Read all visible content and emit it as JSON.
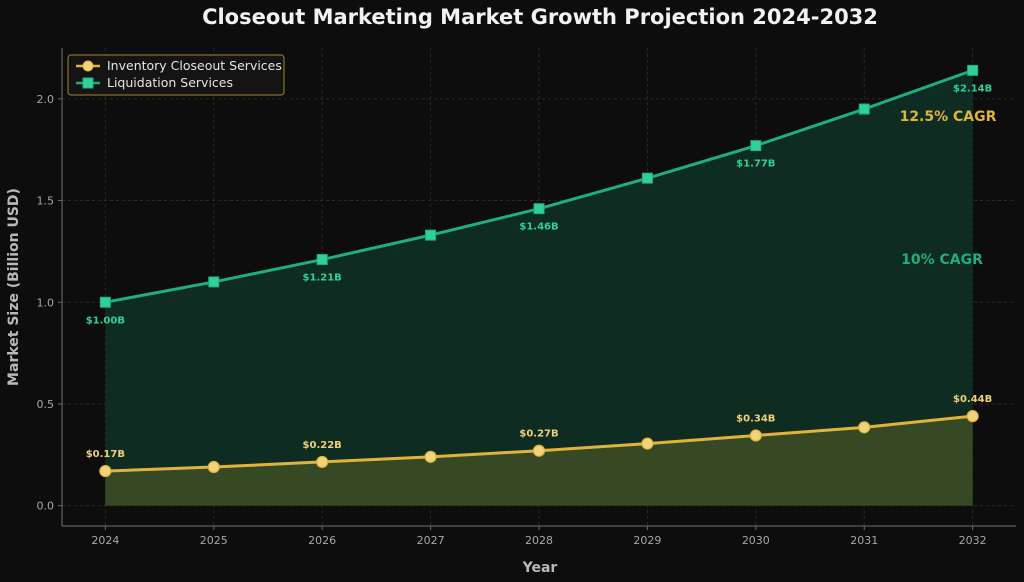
{
  "chart_data": {
    "type": "line",
    "title": "Closeout Marketing Market Growth Projection 2024-2032",
    "xlabel": "Year",
    "ylabel": "Market Size (Billion USD)",
    "x": [
      2024,
      2025,
      2026,
      2027,
      2028,
      2029,
      2030,
      2031,
      2032
    ],
    "xlim": [
      2023.6,
      2032.4
    ],
    "ylim": [
      -0.1,
      2.25
    ],
    "yticks": [
      0.0,
      0.5,
      1.0,
      1.5,
      2.0
    ],
    "grid": true,
    "legend_position": "top-left",
    "series": [
      {
        "name": "Inventory Closeout Services",
        "values": [
          0.17,
          0.19,
          0.215,
          0.24,
          0.27,
          0.305,
          0.345,
          0.385,
          0.44
        ],
        "color": "#e0b43c",
        "marker_fill": "#f2d27a",
        "fill_color": "#3a4a26",
        "marker": "circle",
        "data_labels": [
          {
            "x": 2024,
            "text": "$0.17B"
          },
          {
            "x": 2026,
            "text": "$0.22B"
          },
          {
            "x": 2028,
            "text": "$0.27B"
          },
          {
            "x": 2030,
            "text": "$0.34B"
          },
          {
            "x": 2032,
            "text": "$0.44B"
          }
        ],
        "label_color": "#f0cf7a"
      },
      {
        "name": "Liquidation Services",
        "values": [
          1.0,
          1.1,
          1.21,
          1.33,
          1.46,
          1.61,
          1.77,
          1.95,
          2.14
        ],
        "color": "#1fae80",
        "marker_fill": "#2fd197",
        "fill_color": "#0f2e23",
        "marker": "square",
        "data_labels": [
          {
            "x": 2024,
            "text": "$1.00B"
          },
          {
            "x": 2026,
            "text": "$1.21B"
          },
          {
            "x": 2028,
            "text": "$1.46B"
          },
          {
            "x": 2030,
            "text": "$1.77B"
          },
          {
            "x": 2032,
            "text": "$2.14B"
          }
        ],
        "label_color": "#2fd197"
      }
    ],
    "annotations": [
      {
        "text": "12.5% CAGR",
        "color": "#e0b43c"
      },
      {
        "text": "10% CAGR",
        "color": "#1fae80"
      }
    ]
  }
}
